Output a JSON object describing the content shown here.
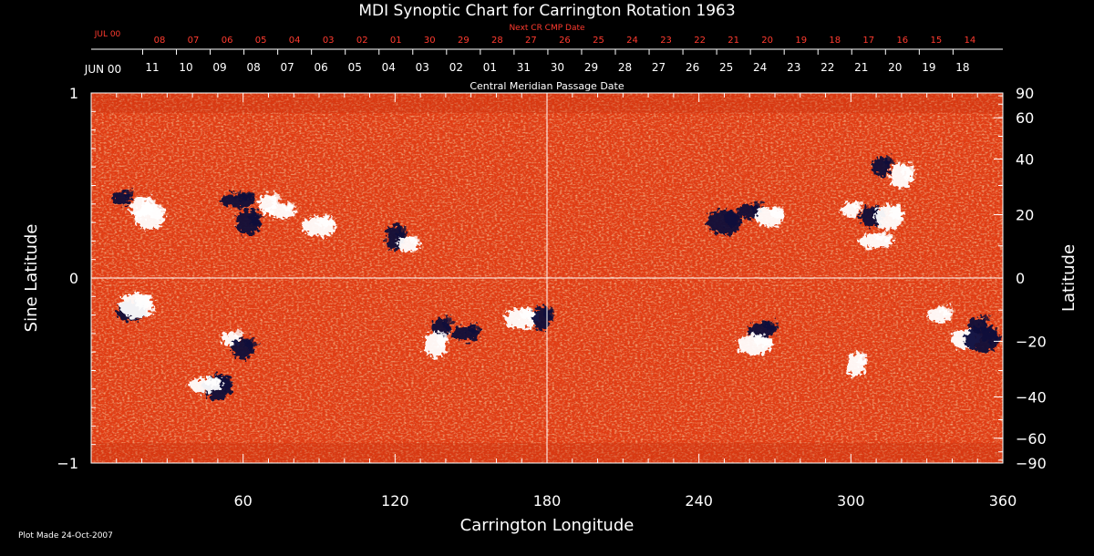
{
  "chart_data": {
    "type": "heatmap",
    "title": "MDI Synoptic Chart for Carrington Rotation 1963",
    "xlabel": "Carrington Longitude",
    "ylabel_left": "Sine Latitude",
    "ylabel_right": "Latitude",
    "xlim": [
      0,
      360
    ],
    "ylim": [
      -1,
      1
    ],
    "x_ticks": [
      60,
      120,
      180,
      240,
      300,
      360
    ],
    "y_ticks_left": [
      {
        "v": 1,
        "label": "1"
      },
      {
        "v": 0,
        "label": "0"
      },
      {
        "v": -1,
        "label": "−1"
      }
    ],
    "y_ticks_right": [
      {
        "lat": 90,
        "label": "90"
      },
      {
        "lat": 60,
        "label": "60"
      },
      {
        "lat": 40,
        "label": "40"
      },
      {
        "lat": 20,
        "label": "20"
      },
      {
        "lat": 0,
        "label": "0"
      },
      {
        "lat": -20,
        "label": "−20"
      },
      {
        "lat": -40,
        "label": "−40"
      },
      {
        "lat": -60,
        "label": "−60"
      },
      {
        "lat": -90,
        "label": "−90"
      }
    ],
    "top_axis_label": "Central Meridian Passage Date",
    "top_axis_month": "JUN 00",
    "top_axis_dates": [
      "11",
      "10",
      "09",
      "08",
      "07",
      "06",
      "05",
      "04",
      "03",
      "02",
      "01",
      "31",
      "30",
      "29",
      "28",
      "27",
      "26",
      "25",
      "24",
      "23",
      "22",
      "21",
      "20",
      "19",
      "18"
    ],
    "next_axis_label": "Next CR CMP Date",
    "next_axis_month": "JUL 00",
    "next_axis_dates": [
      "08",
      "07",
      "06",
      "05",
      "04",
      "03",
      "02",
      "01",
      "30",
      "29",
      "28",
      "27",
      "26",
      "25",
      "24",
      "23",
      "22",
      "21",
      "20",
      "19",
      "18",
      "17",
      "16",
      "15",
      "14"
    ],
    "colors": {
      "background_field": "#e8401a",
      "positive_polarity": "#ffffff",
      "negative_polarity": "#0a0a3a",
      "text": "#ffffff",
      "next_axis": "#ff3b2f"
    },
    "active_regions": [
      {
        "lon": 12,
        "sinlat": 0.43,
        "pol": "neg"
      },
      {
        "lon": 20,
        "sinlat": 0.38,
        "pol": "pos"
      },
      {
        "lon": 23,
        "sinlat": 0.33,
        "pol": "pos"
      },
      {
        "lon": 58,
        "sinlat": 0.42,
        "pol": "neg"
      },
      {
        "lon": 70,
        "sinlat": 0.4,
        "pol": "pos"
      },
      {
        "lon": 62,
        "sinlat": 0.3,
        "pol": "neg"
      },
      {
        "lon": 75,
        "sinlat": 0.36,
        "pol": "pos"
      },
      {
        "lon": 90,
        "sinlat": 0.28,
        "pol": "pos"
      },
      {
        "lon": 120,
        "sinlat": 0.22,
        "pol": "neg"
      },
      {
        "lon": 125,
        "sinlat": 0.18,
        "pol": "pos"
      },
      {
        "lon": 16,
        "sinlat": -0.18,
        "pol": "neg"
      },
      {
        "lon": 18,
        "sinlat": -0.15,
        "pol": "pos"
      },
      {
        "lon": 55,
        "sinlat": -0.33,
        "pol": "pos"
      },
      {
        "lon": 60,
        "sinlat": -0.38,
        "pol": "neg"
      },
      {
        "lon": 50,
        "sinlat": -0.59,
        "pol": "neg"
      },
      {
        "lon": 45,
        "sinlat": -0.58,
        "pol": "pos"
      },
      {
        "lon": 138,
        "sinlat": -0.27,
        "pol": "neg"
      },
      {
        "lon": 136,
        "sinlat": -0.36,
        "pol": "pos"
      },
      {
        "lon": 148,
        "sinlat": -0.3,
        "pol": "neg"
      },
      {
        "lon": 170,
        "sinlat": -0.22,
        "pol": "pos"
      },
      {
        "lon": 178,
        "sinlat": -0.22,
        "pol": "neg"
      },
      {
        "lon": 260,
        "sinlat": 0.36,
        "pol": "neg"
      },
      {
        "lon": 268,
        "sinlat": 0.33,
        "pol": "pos"
      },
      {
        "lon": 250,
        "sinlat": 0.3,
        "pol": "neg"
      },
      {
        "lon": 300,
        "sinlat": 0.37,
        "pol": "pos"
      },
      {
        "lon": 308,
        "sinlat": 0.33,
        "pol": "neg"
      },
      {
        "lon": 315,
        "sinlat": 0.33,
        "pol": "pos"
      },
      {
        "lon": 310,
        "sinlat": 0.2,
        "pol": "pos"
      },
      {
        "lon": 312,
        "sinlat": 0.6,
        "pol": "neg"
      },
      {
        "lon": 320,
        "sinlat": 0.55,
        "pol": "pos"
      },
      {
        "lon": 265,
        "sinlat": -0.28,
        "pol": "neg"
      },
      {
        "lon": 262,
        "sinlat": -0.36,
        "pol": "pos"
      },
      {
        "lon": 302,
        "sinlat": -0.47,
        "pol": "pos"
      },
      {
        "lon": 335,
        "sinlat": -0.2,
        "pol": "pos"
      },
      {
        "lon": 345,
        "sinlat": -0.33,
        "pol": "pos"
      },
      {
        "lon": 352,
        "sinlat": -0.33,
        "pol": "neg"
      },
      {
        "lon": 350,
        "sinlat": -0.25,
        "pol": "neg"
      }
    ]
  },
  "footer": {
    "plot_made": "Plot Made 24-Oct-2007"
  }
}
